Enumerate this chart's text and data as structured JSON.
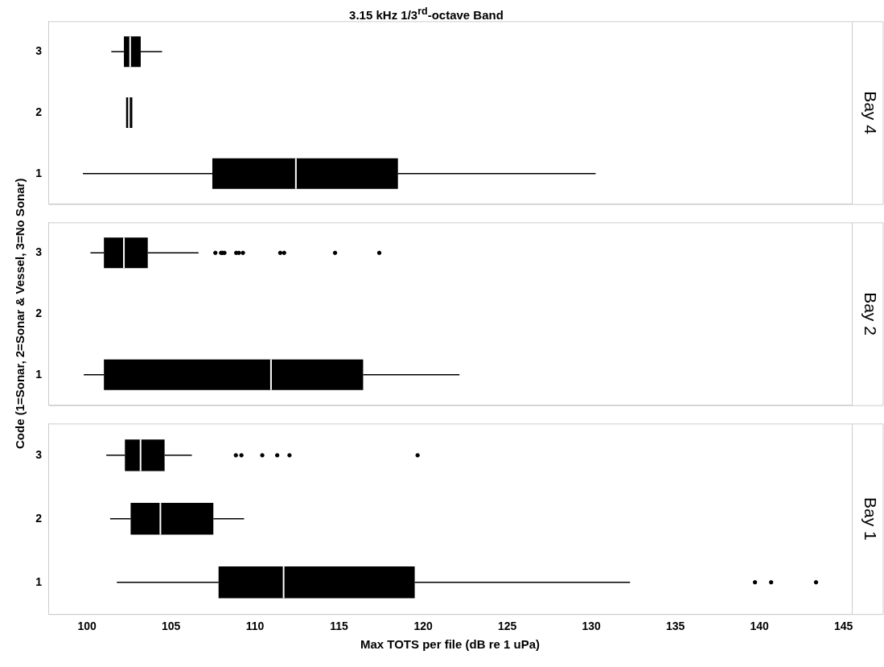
{
  "chart_data": [
    {
      "type": "box",
      "title": "3.15 kHz 1/3$^{rd}$-octave Band",
      "y2label": "Bay 4",
      "orientation": "horizontal",
      "color": "#000000",
      "categories": [
        "3",
        "2",
        "1"
      ],
      "xlim": [
        97.7,
        145.5
      ],
      "xticks": [
        100,
        105,
        110,
        115,
        120,
        125,
        130,
        135,
        140,
        145
      ],
      "tick_labels": "y",
      "grid": false,
      "legend": false,
      "boxes": [
        {
          "low": 101.45,
          "q1": 102.2,
          "median": 102.57,
          "q3": 103.2,
          "high": 104.47
        },
        {
          "low": 102.33,
          "q1": 102.33,
          "median": 102.5,
          "q3": 102.7,
          "high": 102.7
        },
        {
          "low": 99.76,
          "q1": 107.46,
          "median": 112.43,
          "q3": 118.5,
          "high": 130.26
        }
      ]
    },
    {
      "type": "box",
      "y2label": "Bay 2",
      "ylabel": "Code (1=Sonar, 2=Sonar & Vessel, 3=No Sonar)",
      "orientation": "horizontal",
      "color": "#000000",
      "categories": [
        "3",
        "2",
        "1"
      ],
      "xlim": [
        97.7,
        145.5
      ],
      "xticks": [
        100,
        105,
        110,
        115,
        120,
        125,
        130,
        135,
        140,
        145
      ],
      "tick_labels": "y",
      "grid": false,
      "legend": false,
      "boxes": [
        {
          "low": 100.21,
          "q1": 101.01,
          "median": 102.2,
          "q3": 103.62,
          "high": 106.64,
          "outliers": [
            107.64,
            107.98,
            108.06,
            108.18,
            108.88,
            109.04,
            109.28,
            111.5,
            111.73,
            114.76,
            117.39
          ]
        },
        null,
        {
          "low": 99.81,
          "q1": 101.01,
          "median": 110.95,
          "q3": 116.43,
          "high": 122.16
        }
      ]
    },
    {
      "type": "box",
      "y2label": "Bay 1",
      "xlabel": "Max TOTS per file (dB re 1 uPa)",
      "orientation": "horizontal",
      "color": "#000000",
      "categories": [
        "3",
        "2",
        "1"
      ],
      "xlim": [
        97.7,
        145.5
      ],
      "xticks": [
        100,
        105,
        110,
        115,
        120,
        125,
        130,
        135,
        140,
        145
      ],
      "grid": false,
      "legend": false,
      "boxes": [
        {
          "low": 101.15,
          "q1": 102.26,
          "median": 103.19,
          "q3": 104.62,
          "high": 106.24,
          "outliers": [
            108.86,
            109.19,
            110.43,
            111.32,
            112.05,
            119.67
          ]
        },
        {
          "low": 101.38,
          "q1": 102.6,
          "median": 104.37,
          "q3": 107.52,
          "high": 109.35
        },
        {
          "low": 101.78,
          "q1": 107.83,
          "median": 111.7,
          "q3": 119.5,
          "high": 132.31,
          "outliers": [
            139.74,
            140.7,
            143.37
          ]
        }
      ]
    }
  ]
}
